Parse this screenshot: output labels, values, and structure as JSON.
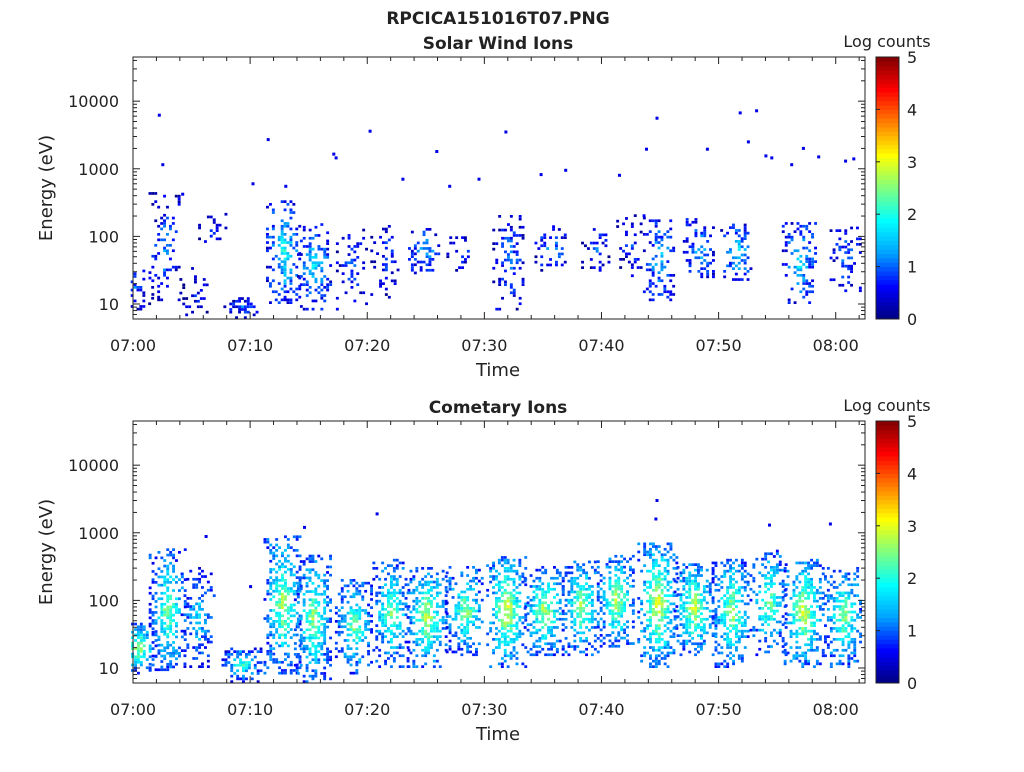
{
  "figure_title": "RPCICA151016T07.PNG",
  "colors": {
    "colormap": [
      "#000080",
      "#0000ff",
      "#00a0ff",
      "#00ffff",
      "#80ff80",
      "#ffff00",
      "#ff8000",
      "#ff0000",
      "#800000"
    ],
    "axes": "#222222",
    "background": "#ffffff"
  },
  "chart_data": [
    {
      "type": "heatmap",
      "title": "Solar Wind Ions",
      "xlabel": "Time",
      "ylabel": "Energy (eV)",
      "x_ticks": [
        "07:00",
        "07:10",
        "07:20",
        "07:30",
        "07:40",
        "07:50",
        "08:00"
      ],
      "x_range_minutes": [
        0,
        62.5
      ],
      "y_scale": "log",
      "y_ticks": [
        "10",
        "100",
        "1000",
        "10000"
      ],
      "y_range": [
        6,
        45000
      ],
      "colorbar": {
        "label": "Log counts",
        "ticks": [
          "0",
          "1",
          "2",
          "3",
          "4",
          "5"
        ],
        "range": [
          0,
          5
        ]
      },
      "bursts": [
        {
          "t": 0.2,
          "emin": 8,
          "emax": 35,
          "peak": 1.0,
          "density": 0.5
        },
        {
          "t": 2.6,
          "emin": 10,
          "emax": 450,
          "peak": 1.2,
          "density": 0.35
        },
        {
          "t": 5.2,
          "emin": 6,
          "emax": 35,
          "peak": 0.8,
          "density": 0.3
        },
        {
          "t": 6.8,
          "emin": 80,
          "emax": 220,
          "peak": 0.8,
          "density": 0.3
        },
        {
          "t": 9.2,
          "emin": 6,
          "emax": 12,
          "peak": 1.0,
          "density": 0.6
        },
        {
          "t": 12.8,
          "emin": 10,
          "emax": 320,
          "peak": 2.0,
          "density": 0.55
        },
        {
          "t": 15.4,
          "emin": 8,
          "emax": 160,
          "peak": 1.8,
          "density": 0.5
        },
        {
          "t": 18.6,
          "emin": 8,
          "emax": 120,
          "peak": 1.0,
          "density": 0.35
        },
        {
          "t": 21.5,
          "emin": 12,
          "emax": 150,
          "peak": 0.9,
          "density": 0.3
        },
        {
          "t": 24.8,
          "emin": 25,
          "emax": 130,
          "peak": 1.5,
          "density": 0.4
        },
        {
          "t": 28.0,
          "emin": 30,
          "emax": 100,
          "peak": 1.0,
          "density": 0.3
        },
        {
          "t": 32.0,
          "emin": 8,
          "emax": 200,
          "peak": 1.2,
          "density": 0.4
        },
        {
          "t": 35.6,
          "emin": 30,
          "emax": 140,
          "peak": 1.4,
          "density": 0.4
        },
        {
          "t": 39.5,
          "emin": 30,
          "emax": 130,
          "peak": 1.0,
          "density": 0.3
        },
        {
          "t": 42.5,
          "emin": 25,
          "emax": 200,
          "peak": 0.9,
          "density": 0.3
        },
        {
          "t": 44.9,
          "emin": 10,
          "emax": 180,
          "peak": 1.6,
          "density": 0.45
        },
        {
          "t": 48.3,
          "emin": 20,
          "emax": 180,
          "peak": 1.5,
          "density": 0.45
        },
        {
          "t": 51.5,
          "emin": 20,
          "emax": 150,
          "peak": 1.8,
          "density": 0.45
        },
        {
          "t": 56.8,
          "emin": 10,
          "emax": 160,
          "peak": 1.8,
          "density": 0.5
        },
        {
          "t": 60.8,
          "emin": 15,
          "emax": 130,
          "peak": 1.2,
          "density": 0.4
        }
      ],
      "scattered_points": [
        [
          2.2,
          6200
        ],
        [
          2.5,
          1150
        ],
        [
          4.2,
          420
        ],
        [
          10.2,
          600
        ],
        [
          11.5,
          2700
        ],
        [
          13.0,
          550
        ],
        [
          17.1,
          1650
        ],
        [
          17.3,
          1450
        ],
        [
          20.2,
          3600
        ],
        [
          23.0,
          700
        ],
        [
          25.9,
          1800
        ],
        [
          27.0,
          550
        ],
        [
          29.5,
          700
        ],
        [
          31.8,
          3500
        ],
        [
          34.8,
          820
        ],
        [
          36.9,
          950
        ],
        [
          41.5,
          800
        ],
        [
          43.8,
          1950
        ],
        [
          44.7,
          5600
        ],
        [
          49.0,
          1950
        ],
        [
          51.8,
          6700
        ],
        [
          52.5,
          2500
        ],
        [
          53.2,
          7200
        ],
        [
          54.0,
          1550
        ],
        [
          54.5,
          1450
        ],
        [
          56.2,
          1150
        ],
        [
          57.2,
          2000
        ],
        [
          58.5,
          1500
        ],
        [
          60.8,
          1300
        ],
        [
          61.5,
          1400
        ]
      ]
    },
    {
      "type": "heatmap",
      "title": "Cometary Ions",
      "xlabel": "Time",
      "ylabel": "Energy (eV)",
      "x_ticks": [
        "07:00",
        "07:10",
        "07:20",
        "07:30",
        "07:40",
        "07:50",
        "08:00"
      ],
      "x_range_minutes": [
        0,
        62.5
      ],
      "y_scale": "log",
      "y_ticks": [
        "10",
        "100",
        "1000",
        "10000"
      ],
      "y_range": [
        6,
        45000
      ],
      "colorbar": {
        "label": "Log counts",
        "ticks": [
          "0",
          "1",
          "2",
          "3",
          "4",
          "5"
        ],
        "range": [
          0,
          5
        ]
      },
      "bursts": [
        {
          "t": 0.4,
          "emin": 8,
          "emax": 45,
          "peak": 2.8,
          "density": 0.7
        },
        {
          "t": 2.9,
          "emin": 9,
          "emax": 550,
          "peak": 2.6,
          "density": 0.7
        },
        {
          "t": 5.5,
          "emin": 10,
          "emax": 300,
          "peak": 1.8,
          "density": 0.55
        },
        {
          "t": 9.2,
          "emin": 6,
          "emax": 20,
          "peak": 2.2,
          "density": 0.8
        },
        {
          "t": 12.7,
          "emin": 8,
          "emax": 900,
          "peak": 2.8,
          "density": 0.7
        },
        {
          "t": 15.3,
          "emin": 6,
          "emax": 450,
          "peak": 2.7,
          "density": 0.7
        },
        {
          "t": 18.8,
          "emin": 8,
          "emax": 200,
          "peak": 2.6,
          "density": 0.7
        },
        {
          "t": 22.0,
          "emin": 10,
          "emax": 400,
          "peak": 2.6,
          "density": 0.7
        },
        {
          "t": 25.0,
          "emin": 10,
          "emax": 300,
          "peak": 3.0,
          "density": 0.8
        },
        {
          "t": 28.3,
          "emin": 15,
          "emax": 300,
          "peak": 2.7,
          "density": 0.75
        },
        {
          "t": 31.8,
          "emin": 10,
          "emax": 450,
          "peak": 3.1,
          "density": 0.8
        },
        {
          "t": 35.0,
          "emin": 15,
          "emax": 300,
          "peak": 2.9,
          "density": 0.8
        },
        {
          "t": 38.2,
          "emin": 15,
          "emax": 400,
          "peak": 2.8,
          "density": 0.75
        },
        {
          "t": 41.2,
          "emin": 20,
          "emax": 450,
          "peak": 2.9,
          "density": 0.75
        },
        {
          "t": 44.7,
          "emin": 10,
          "emax": 700,
          "peak": 3.2,
          "density": 0.8
        },
        {
          "t": 47.8,
          "emin": 15,
          "emax": 350,
          "peak": 3.0,
          "density": 0.8
        },
        {
          "t": 51.0,
          "emin": 10,
          "emax": 400,
          "peak": 2.9,
          "density": 0.75
        },
        {
          "t": 54.2,
          "emin": 15,
          "emax": 550,
          "peak": 2.6,
          "density": 0.7
        },
        {
          "t": 57.2,
          "emin": 10,
          "emax": 400,
          "peak": 3.1,
          "density": 0.8
        },
        {
          "t": 60.6,
          "emin": 10,
          "emax": 300,
          "peak": 2.7,
          "density": 0.75
        }
      ],
      "scattered_points": [
        [
          6.2,
          880
        ],
        [
          10.0,
          160
        ],
        [
          14.6,
          1200
        ],
        [
          20.8,
          1900
        ],
        [
          44.7,
          3000
        ],
        [
          44.6,
          1600
        ],
        [
          54.3,
          1300
        ],
        [
          59.5,
          1350
        ]
      ]
    }
  ]
}
